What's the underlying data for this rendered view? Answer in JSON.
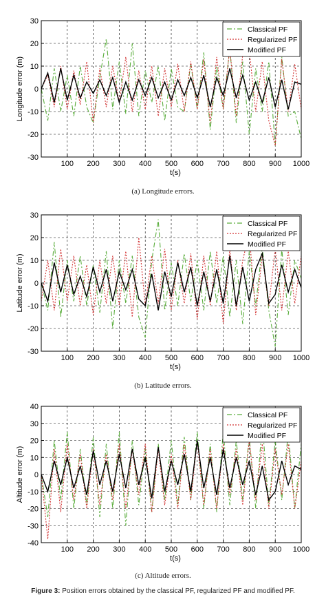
{
  "colors": {
    "classical": "#5aad3c",
    "regularized": "#d23232",
    "modified": "#000000",
    "grid": "#000000",
    "axis": "#000000"
  },
  "chart_data": [
    {
      "type": "line",
      "xlabel": "t(s)",
      "ylabel": "Longitude error (m)",
      "xlim": [
        0,
        1000
      ],
      "ylim": [
        -30,
        30
      ],
      "xticks": [
        100,
        200,
        300,
        400,
        500,
        600,
        700,
        800,
        900,
        1000
      ],
      "yticks": [
        -30,
        -20,
        -10,
        0,
        10,
        20,
        30
      ],
      "grid": true,
      "legend": "top-right",
      "caption": "(a) Longitude errors.",
      "series": [
        {
          "name": "Classical PF",
          "x": [
            0,
            25,
            50,
            75,
            100,
            125,
            150,
            175,
            200,
            225,
            250,
            275,
            300,
            325,
            350,
            375,
            400,
            425,
            450,
            475,
            500,
            525,
            550,
            575,
            600,
            625,
            650,
            675,
            700,
            725,
            750,
            775,
            800,
            825,
            850,
            875,
            900,
            925,
            950,
            975,
            1000
          ],
          "values": [
            0,
            -14,
            9,
            -10,
            6,
            -12,
            10,
            -8,
            -15,
            5,
            22,
            -9,
            12,
            -11,
            20,
            -12,
            8,
            -6,
            10,
            -14,
            9,
            -8,
            -10,
            11,
            -9,
            16,
            -18,
            10,
            -9,
            18,
            -15,
            12,
            -20,
            9,
            -10,
            12,
            -25,
            14,
            -12,
            -10,
            -22
          ]
        },
        {
          "name": "Regularized PF",
          "x": [
            0,
            25,
            50,
            75,
            100,
            125,
            150,
            175,
            200,
            225,
            250,
            275,
            300,
            325,
            350,
            375,
            400,
            425,
            450,
            475,
            500,
            525,
            550,
            575,
            600,
            625,
            650,
            675,
            700,
            725,
            750,
            775,
            800,
            825,
            850,
            875,
            900,
            925,
            950,
            975,
            1000
          ],
          "values": [
            0,
            6,
            -8,
            10,
            -9,
            8,
            -7,
            12,
            -15,
            9,
            -8,
            10,
            -6,
            14,
            -10,
            8,
            -9,
            10,
            -12,
            9,
            -8,
            11,
            -10,
            12,
            -9,
            13,
            -15,
            14,
            -9,
            18,
            -12,
            15,
            17,
            -10,
            12,
            -14,
            -25,
            13,
            -10,
            11,
            -9
          ]
        },
        {
          "name": "Modified PF",
          "x": [
            0,
            25,
            50,
            75,
            100,
            125,
            150,
            175,
            200,
            225,
            250,
            275,
            300,
            325,
            350,
            375,
            400,
            425,
            450,
            475,
            500,
            525,
            550,
            575,
            600,
            625,
            650,
            675,
            700,
            725,
            750,
            775,
            800,
            825,
            850,
            875,
            900,
            925,
            950,
            975,
            1000
          ],
          "values": [
            0,
            7,
            -6,
            9,
            -5,
            6,
            -4,
            3,
            -2,
            4,
            -3,
            5,
            -6,
            3,
            -5,
            4,
            -3,
            5,
            -4,
            3,
            -5,
            4,
            -3,
            5,
            -4,
            6,
            -8,
            5,
            -3,
            9,
            -4,
            6,
            -5,
            3,
            -6,
            5,
            -8,
            4,
            -9,
            3,
            2
          ]
        }
      ]
    },
    {
      "type": "line",
      "xlabel": "t(s)",
      "ylabel": "Latitude error (m)",
      "xlim": [
        0,
        1000
      ],
      "ylim": [
        -30,
        30
      ],
      "xticks": [
        100,
        200,
        300,
        400,
        500,
        600,
        700,
        800,
        900,
        1000
      ],
      "yticks": [
        -30,
        -20,
        -10,
        0,
        10,
        20,
        30
      ],
      "grid": true,
      "legend": "top-right",
      "caption": "(b) Latitude errors.",
      "series": [
        {
          "name": "Classical PF",
          "x": [
            0,
            25,
            50,
            75,
            100,
            125,
            150,
            175,
            200,
            225,
            250,
            275,
            300,
            325,
            350,
            375,
            400,
            425,
            450,
            475,
            500,
            525,
            550,
            575,
            600,
            625,
            650,
            675,
            700,
            725,
            750,
            775,
            800,
            825,
            850,
            875,
            900,
            925,
            950,
            975,
            1000
          ],
          "values": [
            0,
            -12,
            18,
            -15,
            10,
            -8,
            12,
            -10,
            8,
            -13,
            14,
            -20,
            10,
            -9,
            12,
            -15,
            -24,
            10,
            28,
            -12,
            9,
            -10,
            13,
            -8,
            10,
            -12,
            14,
            -9,
            12,
            -15,
            10,
            -18,
            14,
            -10,
            16,
            -12,
            -28,
            15,
            -14,
            10,
            2
          ]
        },
        {
          "name": "Regularized PF",
          "x": [
            0,
            25,
            50,
            75,
            100,
            125,
            150,
            175,
            200,
            225,
            250,
            275,
            300,
            325,
            350,
            375,
            400,
            425,
            450,
            475,
            500,
            525,
            550,
            575,
            600,
            625,
            650,
            675,
            700,
            725,
            750,
            775,
            800,
            825,
            850,
            875,
            900,
            925,
            950,
            975,
            1000
          ],
          "values": [
            -8,
            10,
            -12,
            15,
            -8,
            12,
            -10,
            8,
            -14,
            10,
            -9,
            12,
            -10,
            14,
            -15,
            20,
            -10,
            12,
            -9,
            15,
            -12,
            10,
            -9,
            13,
            -16,
            12,
            -10,
            14,
            -18,
            15,
            -12,
            10,
            22,
            -14,
            12,
            -10,
            15,
            -12,
            14,
            -9,
            12
          ]
        },
        {
          "name": "Modified PF",
          "x": [
            0,
            25,
            50,
            75,
            100,
            125,
            150,
            175,
            200,
            225,
            250,
            275,
            300,
            325,
            350,
            375,
            400,
            425,
            450,
            475,
            500,
            525,
            550,
            575,
            600,
            625,
            650,
            675,
            700,
            725,
            750,
            775,
            800,
            825,
            850,
            875,
            900,
            925,
            950,
            975,
            1000
          ],
          "values": [
            0,
            -8,
            9,
            -4,
            8,
            -5,
            3,
            -6,
            7,
            -4,
            6,
            -8,
            5,
            -3,
            6,
            -7,
            -10,
            4,
            -12,
            5,
            -6,
            9,
            -4,
            7,
            -10,
            5,
            -8,
            6,
            -9,
            12,
            -10,
            7,
            -8,
            6,
            13,
            -9,
            -5,
            8,
            -4,
            6,
            -2
          ]
        }
      ]
    },
    {
      "type": "line",
      "xlabel": "t(s)",
      "ylabel": "Altitude error (m)",
      "xlim": [
        0,
        1000
      ],
      "ylim": [
        -40,
        40
      ],
      "xticks": [
        100,
        200,
        300,
        400,
        500,
        600,
        700,
        800,
        900,
        1000
      ],
      "yticks": [
        -40,
        -30,
        -20,
        -10,
        0,
        10,
        20,
        30,
        40
      ],
      "grid": true,
      "legend": "top-right",
      "caption": "(c) Altitude errors.",
      "series": [
        {
          "name": "Classical PF",
          "x": [
            0,
            25,
            50,
            75,
            100,
            125,
            150,
            175,
            200,
            225,
            250,
            275,
            300,
            325,
            350,
            375,
            400,
            425,
            450,
            475,
            500,
            525,
            550,
            575,
            600,
            625,
            650,
            675,
            700,
            725,
            750,
            775,
            800,
            825,
            850,
            875,
            900,
            925,
            950,
            975,
            1000
          ],
          "values": [
            0,
            -25,
            20,
            -15,
            25,
            -20,
            15,
            -18,
            22,
            -25,
            18,
            -20,
            25,
            -30,
            20,
            -18,
            15,
            -22,
            18,
            -15,
            20,
            -18,
            22,
            -15,
            25,
            -20,
            18,
            -22,
            25,
            -18,
            20,
            -15,
            22,
            -20,
            30,
            -18,
            20,
            -15,
            25,
            -20,
            18
          ]
        },
        {
          "name": "Regularized PF",
          "x": [
            0,
            25,
            50,
            75,
            100,
            125,
            150,
            175,
            200,
            225,
            250,
            275,
            300,
            325,
            350,
            375,
            400,
            425,
            450,
            475,
            500,
            525,
            550,
            575,
            600,
            625,
            650,
            675,
            700,
            725,
            750,
            775,
            800,
            825,
            850,
            875,
            900,
            925,
            950,
            975,
            1000
          ],
          "values": [
            0,
            -38,
            15,
            -22,
            18,
            -15,
            12,
            -20,
            15,
            -18,
            12,
            -15,
            18,
            -20,
            15,
            -12,
            18,
            -22,
            15,
            -18,
            12,
            -20,
            18,
            -15,
            20,
            -18,
            15,
            -20,
            18,
            -12,
            15,
            -18,
            20,
            -15,
            18,
            -20,
            15,
            -12,
            18,
            -20,
            8
          ]
        },
        {
          "name": "Modified PF",
          "x": [
            0,
            25,
            50,
            75,
            100,
            125,
            150,
            175,
            200,
            225,
            250,
            275,
            300,
            325,
            350,
            375,
            400,
            425,
            450,
            475,
            500,
            525,
            550,
            575,
            600,
            625,
            650,
            675,
            700,
            725,
            750,
            775,
            800,
            825,
            850,
            875,
            900,
            925,
            950,
            975,
            1000
          ],
          "values": [
            0,
            -10,
            8,
            -6,
            10,
            -8,
            5,
            -12,
            14,
            -6,
            8,
            -10,
            12,
            -8,
            15,
            -6,
            10,
            -14,
            16,
            -10,
            8,
            -6,
            12,
            -10,
            20,
            -8,
            10,
            -12,
            15,
            -8,
            10,
            -6,
            8,
            -12,
            5,
            -15,
            -10,
            8,
            -6,
            5,
            3
          ]
        }
      ]
    }
  ],
  "figure_caption": {
    "label": "Figure 3:",
    "text": "Position errors obtained by the classical PF, regularized PF and modified PF."
  }
}
